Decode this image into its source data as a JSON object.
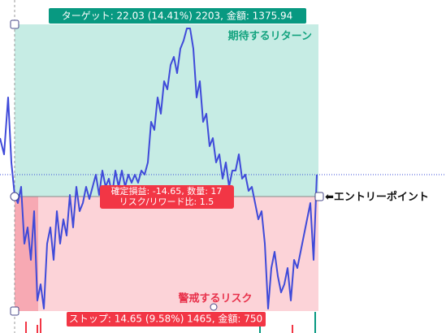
{
  "target_label": "ターゲット: 22.03 (14.41%) 2203, 金額: 1375.94",
  "reward_label": "期待するリターン",
  "position_label": {
    "line1": "確定損益: -14.65, 数量: 17",
    "line2": "リスク/リワード比: 1.5"
  },
  "entry_label": "⬅エントリーポイント",
  "risk_label": "警戒するリスク",
  "stop_label": "ストップ: 14.65 (9.58%) 1465, 金額: 750"
}
